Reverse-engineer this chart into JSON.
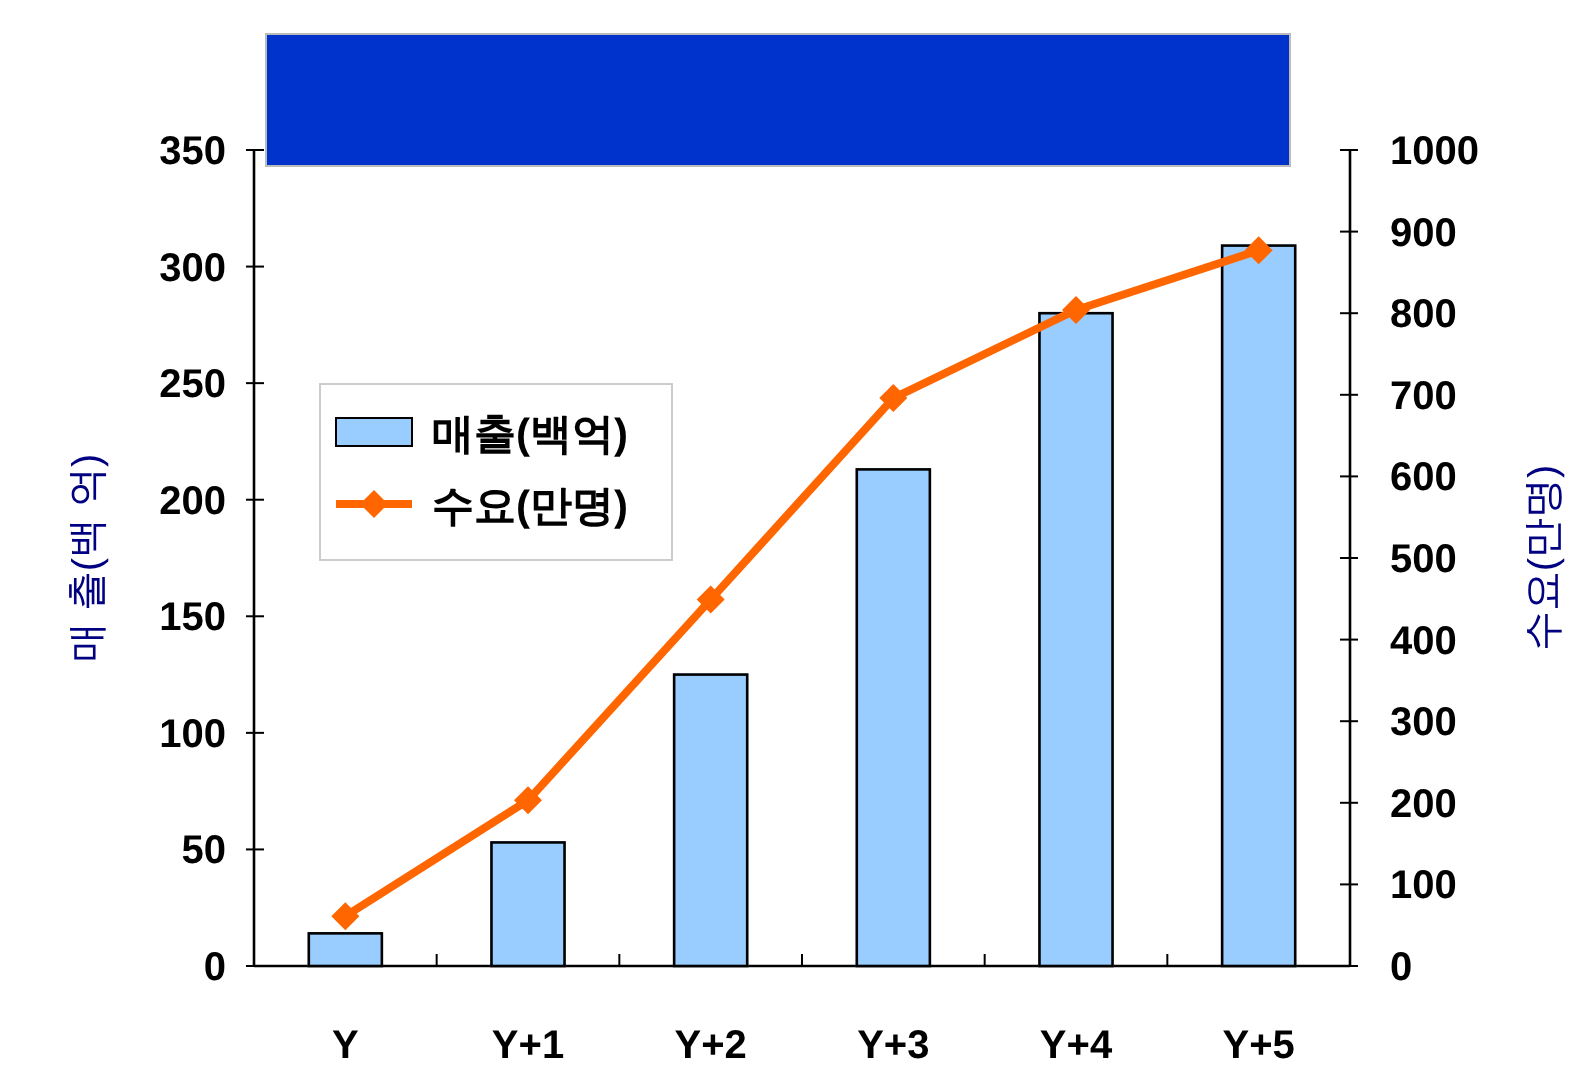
{
  "chart_data": {
    "type": "bar",
    "categories": [
      "Y",
      "Y+1",
      "Y+2",
      "Y+3",
      "Y+4",
      "Y+5"
    ],
    "series": [
      {
        "name": "매출(백억)",
        "color": "#99ccff",
        "values": [
          14,
          53,
          125,
          213,
          280,
          309
        ]
      },
      {
        "name": "수요(만명)",
        "type": "line",
        "axis": "y2",
        "color": "#ff6600",
        "marker": "diamond",
        "values": [
          61,
          203,
          449,
          696,
          804,
          877
        ]
      }
    ],
    "ylabel": "매 출(백 억)",
    "y2label": "수요(만명)",
    "ylim": [
      0,
      350
    ],
    "yticks": [
      0,
      50,
      100,
      150,
      200,
      250,
      300,
      350
    ],
    "y2lim": [
      0,
      1000
    ],
    "y2ticks": [
      0,
      100,
      200,
      300,
      400,
      500,
      600,
      700,
      800,
      900,
      1000
    ],
    "grid": false,
    "legend": "left"
  }
}
